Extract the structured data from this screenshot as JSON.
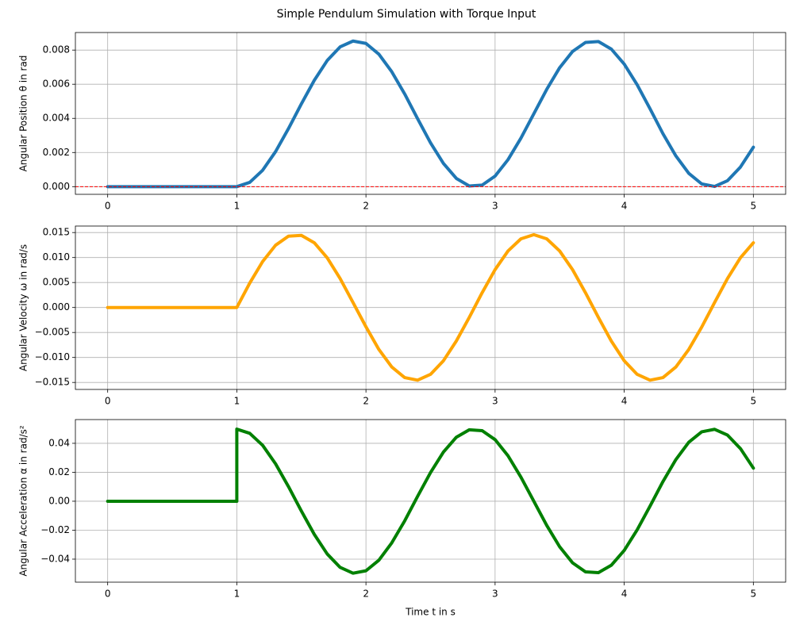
{
  "title": "Simple Pendulum Simulation with Torque Input",
  "chart_data": [
    {
      "type": "line",
      "ylabel": "Angular Position θ in rad",
      "grid": true,
      "xlim": [
        -0.25,
        5.25
      ],
      "xticks": [
        0,
        1,
        2,
        3,
        4,
        5
      ],
      "ylim": [
        -0.00045,
        0.00903
      ],
      "yticks": [
        {
          "value": 0,
          "label": "0.000"
        },
        {
          "value": 0.002,
          "label": "0.002"
        },
        {
          "value": 0.004,
          "label": "0.004"
        },
        {
          "value": 0.006,
          "label": "0.006"
        },
        {
          "value": 0.008,
          "label": "0.008"
        }
      ],
      "hline": 0,
      "hline_color": "#ff0000",
      "x": [
        0,
        0.5,
        1.0,
        1.1,
        1.2,
        1.3,
        1.4,
        1.5,
        1.6,
        1.7,
        1.8,
        1.9,
        2.0,
        2.1,
        2.2,
        2.3,
        2.4,
        2.5,
        2.6,
        2.7,
        2.8,
        2.9,
        3.0,
        3.1,
        3.2,
        3.3,
        3.4,
        3.5,
        3.6,
        3.7,
        3.8,
        3.9,
        4.0,
        4.1,
        4.2,
        4.3,
        4.4,
        4.5,
        4.6,
        4.7,
        4.8,
        4.9,
        5.0
      ],
      "series": [
        {
          "color": "#1f77b4",
          "values": [
            0,
            0,
            0,
            0.00025,
            0.00096,
            0.00205,
            0.0034,
            0.00485,
            0.00623,
            0.00739,
            0.00819,
            0.00853,
            0.00839,
            0.00776,
            0.00673,
            0.00543,
            0.00398,
            0.00257,
            0.00136,
            0.00048,
            4e-05,
            9e-05,
            0.00062,
            0.00158,
            0.00284,
            0.00427,
            0.0057,
            0.00697,
            0.00792,
            0.00845,
            0.0085,
            0.00806,
            0.00718,
            0.00597,
            0.00456,
            0.0031,
            0.0018,
            0.00078,
            0.00016,
            1e-05,
            0.00035,
            0.00115,
            0.00231
          ]
        }
      ]
    },
    {
      "type": "line",
      "ylabel": "Angular Velocity ω in rad/s",
      "grid": true,
      "xlim": [
        -0.25,
        5.25
      ],
      "xticks": [
        0,
        1,
        2,
        3,
        4,
        5
      ],
      "ylim": [
        -0.0164,
        0.0163
      ],
      "yticks": [
        {
          "value": -0.015,
          "label": "−0.015"
        },
        {
          "value": -0.01,
          "label": "−0.010"
        },
        {
          "value": -0.005,
          "label": "−0.005"
        },
        {
          "value": 0,
          "label": "0.000"
        },
        {
          "value": 0.005,
          "label": "0.005"
        },
        {
          "value": 0.01,
          "label": "0.010"
        },
        {
          "value": 0.015,
          "label": "0.015"
        }
      ],
      "x": [
        0,
        0.5,
        1.0,
        1.1,
        1.2,
        1.3,
        1.4,
        1.5,
        1.6,
        1.7,
        1.8,
        1.9,
        2.0,
        2.1,
        2.2,
        2.3,
        2.4,
        2.5,
        2.6,
        2.7,
        2.8,
        2.9,
        3.0,
        3.1,
        3.2,
        3.3,
        3.4,
        3.5,
        3.6,
        3.7,
        3.8,
        3.9,
        4.0,
        4.1,
        4.2,
        4.3,
        4.4,
        4.5,
        4.6,
        4.7,
        4.8,
        4.9,
        5.0
      ],
      "series": [
        {
          "color": "#ffa500",
          "values": [
            0,
            0,
            0,
            0.00488,
            0.0092,
            0.01246,
            0.01428,
            0.01444,
            0.01295,
            0.00994,
            0.0058,
            0.00099,
            -0.00386,
            -0.0084,
            -0.01191,
            -0.01403,
            -0.01455,
            -0.01338,
            -0.01066,
            -0.0067,
            -0.00198,
            0.00297,
            0.00758,
            0.01131,
            0.01374,
            0.01458,
            0.01374,
            0.01131,
            0.00757,
            0.00295,
            -0.00199,
            -0.00672,
            -0.01067,
            -0.01338,
            -0.01455,
            -0.01403,
            -0.0119,
            -0.00839,
            -0.00392,
            0.00101,
            0.00582,
            0.00996,
            0.01295
          ]
        }
      ]
    },
    {
      "type": "line",
      "ylabel": "Angular Acceleration α in rad/s²",
      "xlabel": "Time t in s",
      "grid": true,
      "xlim": [
        -0.25,
        5.25
      ],
      "xticks": [
        0,
        1,
        2,
        3,
        4,
        5
      ],
      "ylim": [
        -0.0559,
        0.0564
      ],
      "yticks": [
        {
          "value": -0.04,
          "label": "−0.04"
        },
        {
          "value": -0.02,
          "label": "−0.02"
        },
        {
          "value": 0,
          "label": "0.00"
        },
        {
          "value": 0.02,
          "label": "0.02"
        },
        {
          "value": 0.04,
          "label": "0.04"
        }
      ],
      "x": [
        0,
        0.5,
        1.0,
        1.0,
        1.1,
        1.2,
        1.3,
        1.4,
        1.5,
        1.6,
        1.7,
        1.8,
        1.9,
        2.0,
        2.1,
        2.2,
        2.3,
        2.4,
        2.5,
        2.6,
        2.7,
        2.8,
        2.9,
        3.0,
        3.1,
        3.2,
        3.3,
        3.4,
        3.5,
        3.6,
        3.7,
        3.8,
        3.9,
        4.0,
        4.1,
        4.2,
        4.3,
        4.4,
        4.5,
        4.6,
        4.7,
        4.8,
        4.9,
        5.0
      ],
      "series": [
        {
          "color": "#008000",
          "values": [
            0,
            0,
            0,
            0.0498,
            0.04693,
            0.03863,
            0.02588,
            0.01012,
            -0.00679,
            -0.02291,
            -0.03642,
            -0.04569,
            -0.04969,
            -0.04802,
            -0.04071,
            -0.02874,
            -0.01356,
            0.0034,
            0.01982,
            0.03397,
            0.04422,
            0.04934,
            0.04875,
            0.04254,
            0.03141,
            0.01666,
            -2e-05,
            -0.0167,
            -0.03144,
            -0.04256,
            -0.04877,
            -0.04933,
            -0.0442,
            -0.03394,
            -0.01978,
            -0.00335,
            0.01361,
            0.02878,
            0.04074,
            0.04796,
            0.04968,
            0.04566,
            0.03636,
            0.02288
          ]
        }
      ]
    }
  ]
}
